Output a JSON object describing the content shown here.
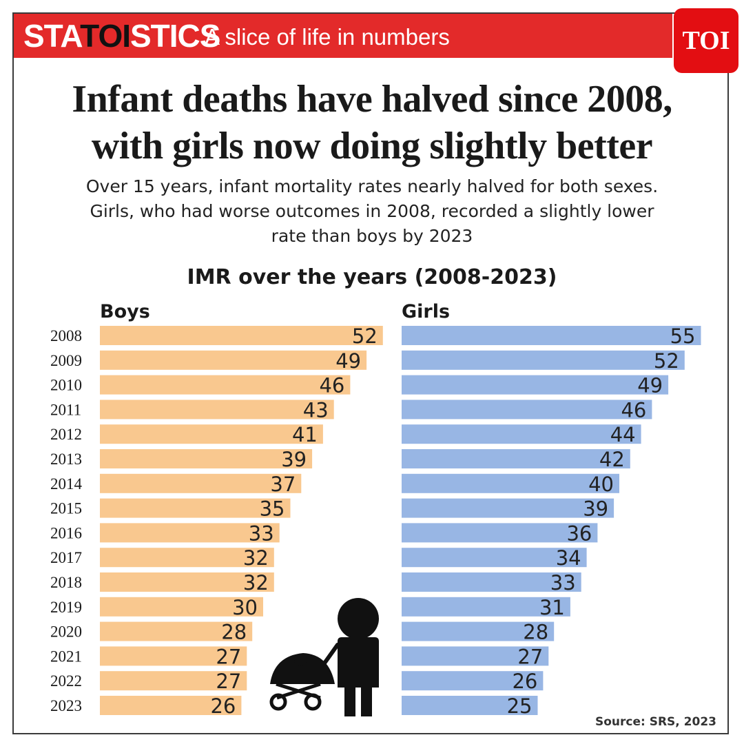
{
  "header": {
    "brand_left": "STA",
    "brand_mid": "TOI",
    "brand_right": "STICS",
    "tagline": "A slice of life in numbers",
    "logo": "TOI"
  },
  "headline": {
    "line1": "Infant deaths have halved since 2008,",
    "line2": "with girls now doing slightly better"
  },
  "subhead": {
    "line1": "Over 15 years, infant mortality rates nearly halved for both sexes.",
    "line2": "Girls, who had worse outcomes in 2008, recorded a slightly lower",
    "line3": "rate than boys by 2023"
  },
  "source": "Source: SRS, 2023",
  "colors": {
    "banner": "#e32a2a",
    "boys": "#f9c88f",
    "girls": "#98b6e4",
    "logo": "#e30e12"
  },
  "icon": "stroller-parent-icon",
  "chart_data": {
    "type": "bar",
    "orientation": "horizontal",
    "title": "IMR over the years (2008-2023)",
    "categories": [
      "2008",
      "2009",
      "2010",
      "2011",
      "2012",
      "2013",
      "2014",
      "2015",
      "2016",
      "2017",
      "2018",
      "2019",
      "2020",
      "2021",
      "2022",
      "2023"
    ],
    "series": [
      {
        "name": "Boys",
        "values": [
          52,
          49,
          46,
          43,
          41,
          39,
          37,
          35,
          33,
          32,
          32,
          30,
          28,
          27,
          27,
          26
        ]
      },
      {
        "name": "Girls",
        "values": [
          55,
          52,
          49,
          46,
          44,
          42,
          40,
          39,
          36,
          34,
          33,
          31,
          28,
          27,
          26,
          25
        ]
      }
    ],
    "data_labels": true,
    "grid": false,
    "legend": "group-labels-above-bars"
  }
}
